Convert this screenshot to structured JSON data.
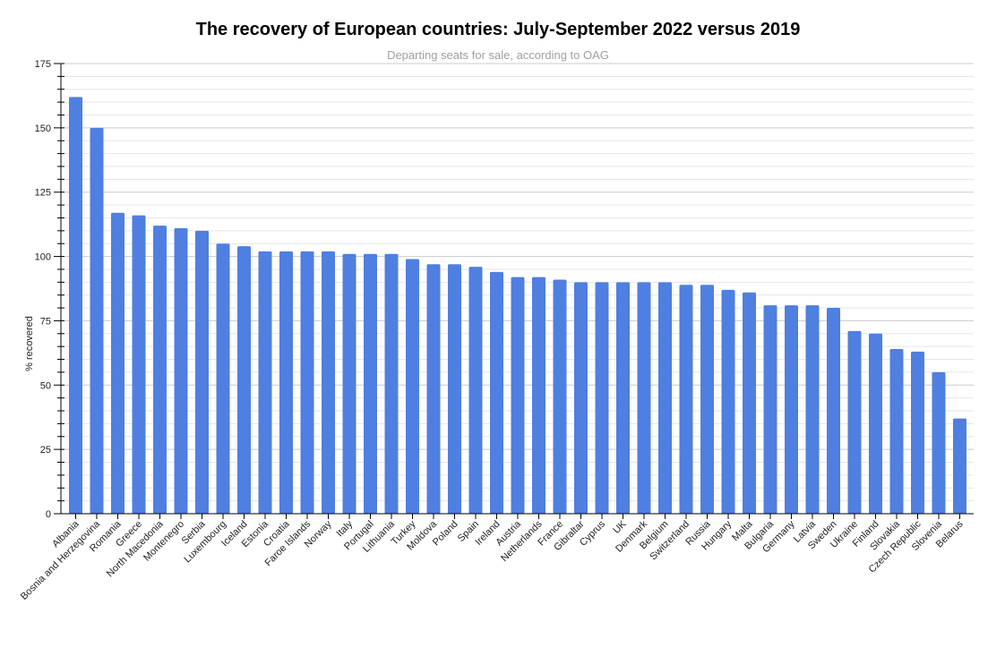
{
  "chart_data": {
    "type": "bar",
    "title": "The recovery of European countries: July-September 2022 versus 2019",
    "subtitle": "Departing seats for sale, according to OAG",
    "xlabel": "",
    "ylabel": "% recovered",
    "ylim": [
      0,
      175
    ],
    "yticks": [
      0,
      25,
      50,
      75,
      100,
      125,
      150,
      175
    ],
    "minor_tick_step": 5,
    "grid": true,
    "legend": "none",
    "bar_color": "#4f7fe0",
    "categories": [
      "Albania",
      "Bosnia and Herzegovina",
      "Romania",
      "Greece",
      "North Macedonia",
      "Montenegro",
      "Serbia",
      "Luxembourg",
      "Iceland",
      "Estonia",
      "Croatia",
      "Faroe Islands",
      "Norway",
      "Italy",
      "Portugal",
      "Lithuania",
      "Turkey",
      "Moldova",
      "Poland",
      "Spain",
      "Ireland",
      "Austria",
      "Netherlands",
      "France",
      "Gibraltar",
      "Cyprus",
      "UK",
      "Denmark",
      "Belgium",
      "Switzerland",
      "Russia",
      "Hungary",
      "Malta",
      "Bulgaria",
      "Germany",
      "Latvia",
      "Sweden",
      "Ukraine",
      "Finland",
      "Slovakia",
      "Czech Republic",
      "Slovenia",
      "Belarus"
    ],
    "values": [
      162,
      150,
      117,
      116,
      112,
      111,
      110,
      105,
      104,
      102,
      102,
      102,
      102,
      101,
      101,
      101,
      99,
      97,
      97,
      96,
      94,
      92,
      92,
      91,
      90,
      90,
      90,
      90,
      90,
      89,
      89,
      87,
      86,
      81,
      81,
      81,
      80,
      71,
      70,
      64,
      63,
      55,
      37
    ]
  }
}
